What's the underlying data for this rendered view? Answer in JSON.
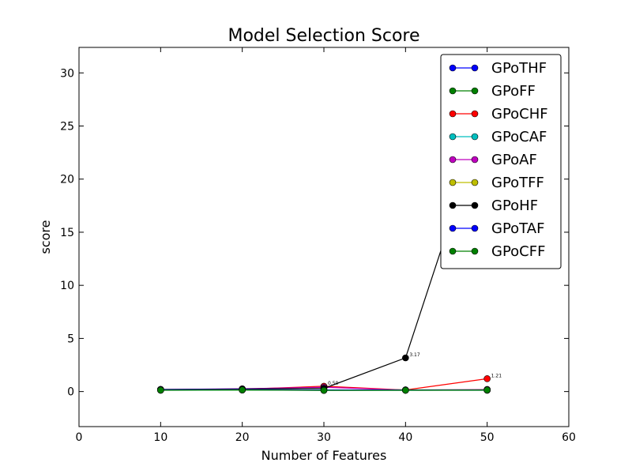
{
  "chart_data": {
    "type": "line",
    "title": "Model Selection Score",
    "xlabel": "Number of Features",
    "ylabel": "score",
    "xlim": [
      0,
      60
    ],
    "ylim": [
      -3.3,
      32.4
    ],
    "xticks": [
      0,
      10,
      20,
      30,
      40,
      50,
      60
    ],
    "yticks": [
      0,
      5,
      10,
      15,
      20,
      25,
      30
    ],
    "grid": false,
    "legend_position": "top-right",
    "x": [
      10,
      20,
      30,
      40,
      50
    ],
    "series": [
      {
        "name": "GPoTHF",
        "color": "#0000ff",
        "values": [
          0.18,
          0.17,
          0.13,
          0.13,
          0.14
        ],
        "labels": [
          "",
          "",
          "",
          "",
          ""
        ]
      },
      {
        "name": "GPoFF",
        "color": "#008000",
        "values": [
          0.12,
          0.14,
          0.12,
          0.12,
          0.12
        ],
        "labels": [
          "",
          "",
          "",
          "",
          ""
        ]
      },
      {
        "name": "GPoCHF",
        "color": "#ff0000",
        "values": [
          0.18,
          0.22,
          0.5,
          0.15,
          1.21
        ],
        "labels": [
          "",
          "",
          "0.50",
          "",
          "1.21"
        ]
      },
      {
        "name": "GPoCAF",
        "color": "#00bfbf",
        "values": [
          0.14,
          0.16,
          0.14,
          0.13,
          0.13
        ],
        "labels": [
          "",
          "",
          "",
          "",
          ""
        ]
      },
      {
        "name": "GPoAF",
        "color": "#bf00bf",
        "values": [
          0.2,
          0.26,
          0.4,
          0.14,
          0.2
        ],
        "labels": [
          "",
          "",
          "",
          "",
          ""
        ]
      },
      {
        "name": "GPoTFF",
        "color": "#bfbf00",
        "values": [
          0.16,
          0.18,
          0.14,
          0.16,
          0.16
        ],
        "labels": [
          "",
          "",
          "",
          "",
          ""
        ]
      },
      {
        "name": "GPoHF",
        "color": "#000000",
        "values": [
          0.2,
          0.24,
          0.3,
          3.17,
          26.5
        ],
        "labels": [
          "",
          "",
          "",
          "3.17",
          ""
        ]
      },
      {
        "name": "GPoTAF",
        "color": "#0000ff",
        "values": [
          0.17,
          0.19,
          0.15,
          0.15,
          0.15
        ],
        "labels": [
          "",
          "",
          "",
          "",
          ""
        ]
      },
      {
        "name": "GPoCFF",
        "color": "#008000",
        "values": [
          0.13,
          0.15,
          0.11,
          0.12,
          0.14
        ],
        "labels": [
          "",
          "",
          "",
          "",
          ""
        ]
      }
    ]
  }
}
